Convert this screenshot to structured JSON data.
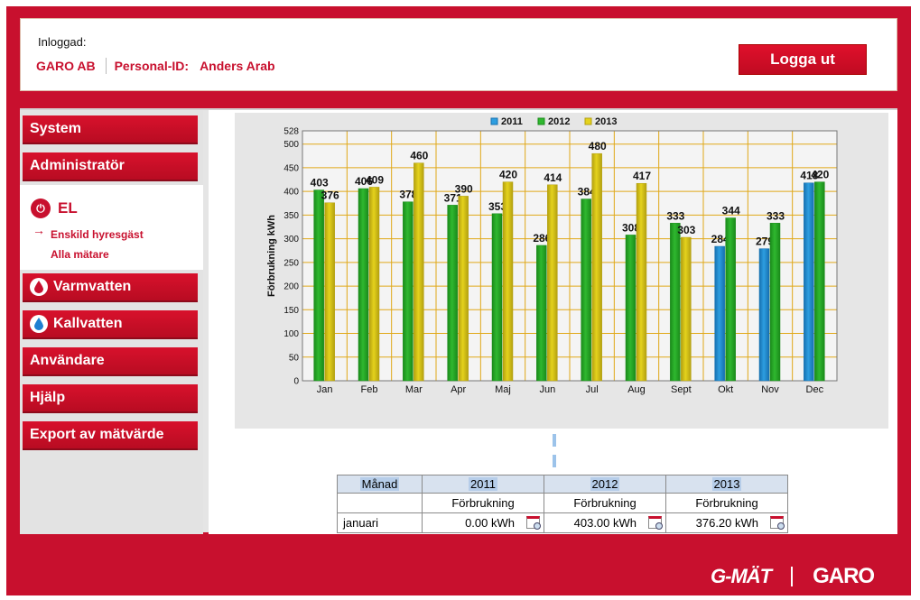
{
  "header": {
    "inloggad_label": "Inloggad:",
    "company": "GARO AB",
    "personal_id_label": "Personal-ID:",
    "user_name": "Anders Arab",
    "logout_label": "Logga ut"
  },
  "sidebar": {
    "system": "System",
    "administrator": "Administratör",
    "el_title": "EL",
    "el_links": [
      "Enskild hyresgäst",
      "Alla mätare"
    ],
    "varmvatten": "Varmvatten",
    "kallvatten": "Kallvatten",
    "anvandare": "Användare",
    "hjalp": "Hjälp",
    "export": "Export av mätvärde"
  },
  "colors": {
    "brand_red": "#c8102e",
    "series_2011": "#2d9ee0",
    "series_2012": "#2fb82f",
    "series_2013": "#e4d21c"
  },
  "chart_data": {
    "type": "bar",
    "ylabel": "Förbrukning kWh",
    "ylim": [
      0,
      528
    ],
    "yticks": [
      0,
      50,
      100,
      150,
      200,
      250,
      300,
      350,
      400,
      450,
      500,
      528
    ],
    "grid": true,
    "legend_position": "top-center",
    "categories": [
      "Jan",
      "Feb",
      "Mar",
      "Apr",
      "Maj",
      "Jun",
      "Jul",
      "Aug",
      "Sept",
      "Okt",
      "Nov",
      "Dec"
    ],
    "series": [
      {
        "name": "2011",
        "values": [
          null,
          null,
          null,
          null,
          null,
          null,
          null,
          null,
          null,
          284,
          279,
          418
        ]
      },
      {
        "name": "2012",
        "values": [
          403,
          406,
          378,
          371,
          353,
          286,
          384,
          308,
          333,
          344,
          333,
          420
        ]
      },
      {
        "name": "2013",
        "values": [
          376,
          409,
          460,
          390,
          420,
          414,
          480,
          417,
          303,
          null,
          null,
          null
        ]
      }
    ]
  },
  "table": {
    "header_month": "Månad",
    "years": [
      "2011",
      "2012",
      "2013"
    ],
    "sub_label": "Förbrukning",
    "rows": [
      {
        "month": "januari",
        "values": [
          "0.00 kWh",
          "403.00 kWh",
          "376.20 kWh"
        ]
      }
    ]
  },
  "footer": {
    "logo_gmat": "G-MÄT",
    "logo_garo": "GARO"
  }
}
